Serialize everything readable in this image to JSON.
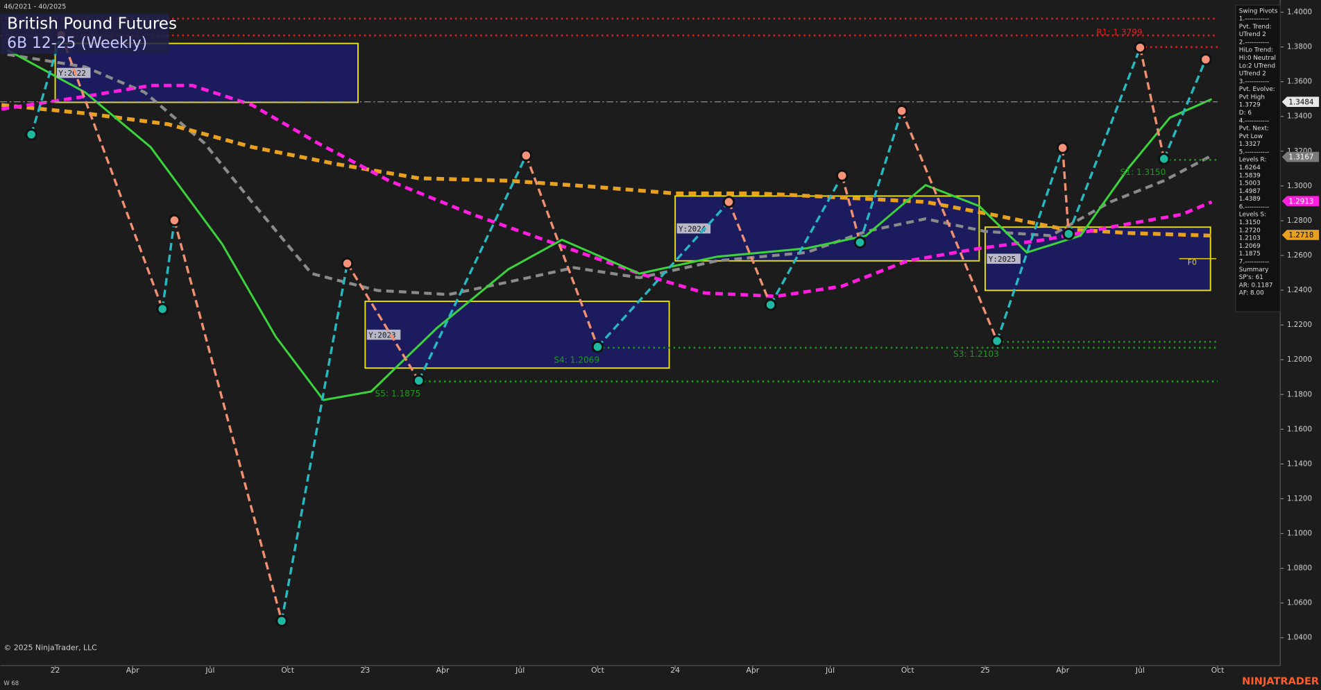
{
  "chart_data": {
    "type": "line",
    "title": "British Pound Futures",
    "subtitle": "6B 12-25 (Weekly)",
    "date_range": "46/2021 - 40/2025",
    "copyright": "© 2025 NinjaTrader, LLC",
    "bar_count_label": "W 68",
    "brand": "NINJATRADER",
    "f0_label": "F0",
    "xlim": [
      -2.2,
      212.5
    ],
    "ylim": [
      1.024,
      1.407
    ],
    "xticks": [
      {
        "value": 7,
        "label": "22"
      },
      {
        "value": 20,
        "label": "Apr"
      },
      {
        "value": 33,
        "label": "Jul"
      },
      {
        "value": 46,
        "label": "Oct"
      },
      {
        "value": 59,
        "label": "23"
      },
      {
        "value": 72,
        "label": "Apr"
      },
      {
        "value": 85,
        "label": "Jul"
      },
      {
        "value": 98,
        "label": "Oct"
      },
      {
        "value": 111,
        "label": "24"
      },
      {
        "value": 124,
        "label": "Apr"
      },
      {
        "value": 137,
        "label": "Jul"
      },
      {
        "value": 150,
        "label": "Oct"
      },
      {
        "value": 163,
        "label": "25"
      },
      {
        "value": 176,
        "label": "Apr"
      },
      {
        "value": 189,
        "label": "Jul"
      },
      {
        "value": 202,
        "label": "Oct"
      }
    ],
    "yticks": [
      {
        "value": 1.04,
        "label": "1.0400"
      },
      {
        "value": 1.06,
        "label": "1.0600"
      },
      {
        "value": 1.08,
        "label": "1.0800"
      },
      {
        "value": 1.1,
        "label": "1.1000"
      },
      {
        "value": 1.12,
        "label": "1.1200"
      },
      {
        "value": 1.14,
        "label": "1.1400"
      },
      {
        "value": 1.16,
        "label": "1.1600"
      },
      {
        "value": 1.18,
        "label": "1.1800"
      },
      {
        "value": 1.2,
        "label": "1.2000"
      },
      {
        "value": 1.22,
        "label": "1.2200"
      },
      {
        "value": 1.24,
        "label": "1.2400"
      },
      {
        "value": 1.26,
        "label": "1.2600"
      },
      {
        "value": 1.28,
        "label": "1.2800"
      },
      {
        "value": 1.3,
        "label": "1.3000"
      },
      {
        "value": 1.32,
        "label": "1.3200"
      },
      {
        "value": 1.34,
        "label": "1.3400"
      },
      {
        "value": 1.36,
        "label": "1.3600"
      },
      {
        "value": 1.38,
        "label": "1.3800"
      },
      {
        "value": 1.4,
        "label": "1.4000"
      }
    ],
    "boxes": [
      {
        "label": "Y:2022",
        "x": [
          7,
          57.8
        ],
        "low": 1.3481,
        "high": 1.382
      },
      {
        "label": "Y:2023",
        "x": [
          59,
          110
        ],
        "low": 1.1952,
        "high": 1.2336
      },
      {
        "label": "Y:2024",
        "x": [
          111,
          162
        ],
        "low": 1.2569,
        "high": 1.2942
      },
      {
        "label": "Y:2025",
        "x": [
          163,
          200.8
        ],
        "low": 1.2399,
        "high": 1.2763
      }
    ],
    "series": [
      {
        "color": "#8a8a8a",
        "style": "dashed",
        "width": 3.5,
        "x": [
          -1,
          12,
          22,
          32,
          40,
          50,
          61,
          73,
          83,
          94,
          105,
          118,
          133,
          143,
          153,
          163,
          174,
          184,
          193,
          201
        ],
        "values": [
          1.3757,
          1.3685,
          1.3539,
          1.3248,
          1.2908,
          1.2496,
          1.2399,
          1.2375,
          1.2447,
          1.253,
          1.2472,
          1.2569,
          1.2617,
          1.2738,
          1.2811,
          1.2738,
          1.2714,
          1.2908,
          1.303,
          1.3175
        ]
      },
      {
        "color": "#e8a020",
        "style": "dashed",
        "width": 4.5,
        "x": [
          -2,
          12,
          26,
          40,
          54,
          68,
          83,
          97,
          111,
          125,
          139,
          153,
          164,
          176,
          187,
          201
        ],
        "values": [
          1.3466,
          1.3418,
          1.3355,
          1.3224,
          1.3127,
          1.3044,
          1.303,
          1.2996,
          1.2957,
          1.2957,
          1.2933,
          1.2908,
          1.2836,
          1.2753,
          1.2729,
          1.2714
        ]
      },
      {
        "color": "#ff1ee0",
        "style": "dashed",
        "width": 4,
        "x": [
          -2,
          12,
          23,
          30,
          40,
          51,
          63,
          77,
          91,
          105,
          116,
          128,
          139,
          150,
          162,
          173,
          184,
          196,
          201
        ],
        "values": [
          1.3442,
          1.3515,
          1.3578,
          1.3578,
          1.3466,
          1.3248,
          1.303,
          1.2836,
          1.2666,
          1.2496,
          1.2384,
          1.2365,
          1.2423,
          1.2569,
          1.2641,
          1.269,
          1.2763,
          1.2836,
          1.2908
        ]
      },
      {
        "color": "#3cd23c",
        "style": "solid",
        "width": 2.5,
        "x": [
          -1,
          12,
          23,
          35,
          44,
          52,
          60,
          71,
          83,
          92,
          105,
          118,
          133,
          143,
          153,
          162,
          170,
          179,
          187,
          194,
          201
        ],
        "values": [
          1.3782,
          1.3539,
          1.3224,
          1.2666,
          1.2132,
          1.1768,
          1.1817,
          1.2181,
          1.252,
          1.269,
          1.2496,
          1.2593,
          1.2641,
          1.2714,
          1.3005,
          1.2884,
          1.2617,
          1.2714,
          1.3102,
          1.3393,
          1.35
        ]
      }
    ],
    "levels": [
      {
        "value": 1.3963,
        "x": [
          -2.2,
          202
        ],
        "color": "#e02020",
        "style": "dotted"
      },
      {
        "value": 1.3866,
        "x": [
          -2.2,
          202
        ],
        "color": "#e02020",
        "style": "dotted"
      },
      {
        "value": 1.3799,
        "x": [
          189,
          202
        ],
        "color": "#e02020",
        "style": "dotted",
        "label": "R1: 1.3799"
      },
      {
        "value": 1.3484,
        "x": [
          -2.2,
          202
        ],
        "color": "#9a9a9a",
        "style": "dashdot"
      },
      {
        "value": 1.315,
        "x": [
          193,
          202
        ],
        "color": "#1f9a1f",
        "style": "dotted",
        "label": "S1: 1.3150"
      },
      {
        "value": 1.2103,
        "x": [
          165,
          202
        ],
        "color": "#1f9a1f",
        "style": "dotted",
        "label": "S3: 1.2103"
      },
      {
        "value": 1.2069,
        "x": [
          98,
          202
        ],
        "color": "#1f9a1f",
        "style": "dotted",
        "label": "S4: 1.2069"
      },
      {
        "value": 1.1875,
        "x": [
          68,
          202
        ],
        "color": "#1f9a1f",
        "style": "dotted",
        "label": "S5: 1.1875"
      }
    ],
    "pivots": {
      "up_color": "#27b8c0",
      "down_color": "#f09070",
      "high_color": "#f5937a",
      "low_color": "#1fb8a0",
      "x": [
        3,
        8,
        25,
        27,
        45,
        56,
        68,
        86,
        98,
        120,
        127,
        139,
        142,
        149,
        165,
        176,
        177,
        189,
        193,
        200
      ],
      "values": [
        1.3296,
        1.3869,
        1.2292,
        1.2802,
        1.0497,
        1.2554,
        1.188,
        1.3175,
        1.2074,
        1.2908,
        1.2316,
        1.3059,
        1.2675,
        1.3432,
        1.2108,
        1.3219,
        1.2724,
        1.3796,
        1.3156,
        1.3728
      ]
    },
    "price_tags": [
      {
        "value": 1.3484,
        "color": "#e8e8e8",
        "text_color": "#000000"
      },
      {
        "value": 1.3167,
        "color": "#7a7a7a",
        "text_color": "#ffffff"
      },
      {
        "value": 1.2913,
        "color": "#ff1ee0",
        "text_color": "#ffffff"
      },
      {
        "value": 1.2718,
        "color": "#e8a020",
        "text_color": "#000000"
      }
    ],
    "info_panel": [
      "Swing Pivots",
      "1.-----------",
      "Pvt. Trend:",
      "UTrend 2",
      "2.-----------",
      "HiLo Trend:",
      "Hi:0 Neutral",
      "Lo:2 UTrend",
      "UTrend 2",
      "3.-----------",
      "Pvt. Evolve:",
      "Pvt High",
      "1.3729",
      "D: 6",
      "4.-----------",
      "Pvt. Next:",
      "Pvt Low",
      "1.3327",
      "5.-----------",
      "Levels R:",
      "1.6264",
      "1.5839",
      "1.5003",
      "1.4987",
      "1.4389",
      "6.-----------",
      "Levels S:",
      "1.3150",
      "1.2720",
      "1.2103",
      "1.2069",
      "1.1875",
      "7.-----------",
      "Summary",
      "SP's: 61",
      "AR: 0.1187",
      "AF: 8.00"
    ]
  }
}
